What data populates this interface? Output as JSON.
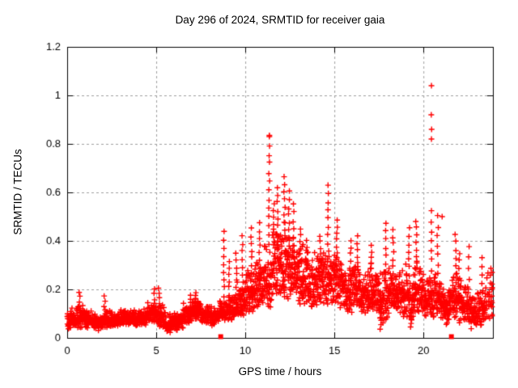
{
  "chart_data": {
    "type": "scatter",
    "title": "Day 296 of 2024, SRMTID for receiver gaia",
    "xlabel": "GPS time / hours",
    "ylabel": "SRMTID / TECUs",
    "xlim": [
      0,
      23.9
    ],
    "ylim": [
      0,
      1.2
    ],
    "xtick_values": [
      0,
      5,
      10,
      15,
      20
    ],
    "xtick_labels": [
      "0",
      "5",
      "10",
      "15",
      "20"
    ],
    "ytick_values": [
      0,
      0.2,
      0.4,
      0.6,
      0.8,
      1.0,
      1.2
    ],
    "ytick_labels": [
      "0",
      "0.2",
      "0.4",
      "0.6",
      "0.8",
      "1",
      "1.2"
    ],
    "grid": {
      "style": "dashed",
      "color": "#9e9e9e",
      "shown": true
    },
    "marker": {
      "shape": "plus",
      "color": "#ff0000",
      "size": 7
    },
    "border_color": "#000000",
    "background_color": "#ffffff",
    "seed": 42,
    "series": [
      {
        "name": "srmtid-plus-markers",
        "representation": "band-envelope",
        "bin_width_hours": 0.5,
        "bins": [
          [
            0.0,
            0.03,
            0.13,
            55
          ],
          [
            0.5,
            0.04,
            0.14,
            55
          ],
          [
            1.0,
            0.04,
            0.12,
            55
          ],
          [
            1.5,
            0.03,
            0.1,
            55
          ],
          [
            2.0,
            0.04,
            0.12,
            55
          ],
          [
            2.5,
            0.04,
            0.11,
            55
          ],
          [
            3.0,
            0.05,
            0.12,
            55
          ],
          [
            3.5,
            0.05,
            0.12,
            55
          ],
          [
            4.0,
            0.05,
            0.13,
            55
          ],
          [
            4.5,
            0.06,
            0.16,
            55
          ],
          [
            5.0,
            0.04,
            0.15,
            55
          ],
          [
            5.5,
            0.02,
            0.1,
            55
          ],
          [
            6.0,
            0.03,
            0.11,
            55
          ],
          [
            6.5,
            0.06,
            0.15,
            55
          ],
          [
            7.0,
            0.07,
            0.17,
            55
          ],
          [
            7.5,
            0.06,
            0.14,
            55
          ],
          [
            8.0,
            0.05,
            0.13,
            55
          ],
          [
            8.5,
            0.06,
            0.16,
            55
          ],
          [
            9.0,
            0.07,
            0.2,
            55
          ],
          [
            9.5,
            0.08,
            0.24,
            55
          ],
          [
            10.0,
            0.1,
            0.3,
            58
          ],
          [
            10.5,
            0.1,
            0.33,
            58
          ],
          [
            11.0,
            0.12,
            0.4,
            58
          ],
          [
            11.5,
            0.15,
            0.48,
            60
          ],
          [
            12.0,
            0.15,
            0.5,
            60
          ],
          [
            12.5,
            0.15,
            0.42,
            60
          ],
          [
            13.0,
            0.13,
            0.4,
            58
          ],
          [
            13.5,
            0.12,
            0.36,
            58
          ],
          [
            14.0,
            0.12,
            0.36,
            58
          ],
          [
            14.5,
            0.13,
            0.38,
            58
          ],
          [
            15.0,
            0.12,
            0.36,
            58
          ],
          [
            15.5,
            0.1,
            0.32,
            58
          ],
          [
            16.0,
            0.12,
            0.34,
            58
          ],
          [
            16.5,
            0.1,
            0.3,
            58
          ],
          [
            17.0,
            0.1,
            0.32,
            58
          ],
          [
            17.5,
            0.05,
            0.3,
            58
          ],
          [
            18.0,
            0.1,
            0.32,
            58
          ],
          [
            18.5,
            0.08,
            0.28,
            58
          ],
          [
            19.0,
            0.05,
            0.32,
            58
          ],
          [
            19.5,
            0.1,
            0.33,
            58
          ],
          [
            20.0,
            0.08,
            0.28,
            55
          ],
          [
            20.5,
            0.08,
            0.28,
            55
          ],
          [
            21.0,
            0.07,
            0.22,
            55
          ],
          [
            21.5,
            0.08,
            0.28,
            55
          ],
          [
            22.0,
            0.06,
            0.25,
            55
          ],
          [
            22.5,
            0.03,
            0.2,
            55
          ],
          [
            23.0,
            0.04,
            0.22,
            50
          ],
          [
            23.5,
            0.05,
            0.3,
            30
          ]
        ],
        "spikes": [
          [
            0.7,
            0.1,
            0.19,
            5
          ],
          [
            2.1,
            0.09,
            0.17,
            5
          ],
          [
            4.9,
            0.12,
            0.2,
            5
          ],
          [
            5.15,
            0.1,
            0.21,
            6
          ],
          [
            6.9,
            0.12,
            0.18,
            4
          ],
          [
            7.2,
            0.13,
            0.19,
            5
          ],
          [
            8.8,
            0.14,
            0.44,
            10
          ],
          [
            9.1,
            0.15,
            0.32,
            7
          ],
          [
            9.5,
            0.18,
            0.35,
            7
          ],
          [
            9.85,
            0.2,
            0.42,
            8
          ],
          [
            10.35,
            0.24,
            0.45,
            8
          ],
          [
            10.8,
            0.26,
            0.47,
            8
          ],
          [
            11.35,
            0.35,
            0.83,
            14
          ],
          [
            11.6,
            0.38,
            0.55,
            7
          ],
          [
            11.8,
            0.4,
            0.62,
            8
          ],
          [
            12.2,
            0.42,
            0.66,
            9
          ],
          [
            12.45,
            0.38,
            0.6,
            8
          ],
          [
            12.7,
            0.35,
            0.55,
            7
          ],
          [
            13.1,
            0.32,
            0.45,
            6
          ],
          [
            13.45,
            0.3,
            0.4,
            5
          ],
          [
            14.2,
            0.3,
            0.42,
            6
          ],
          [
            14.65,
            0.32,
            0.63,
            10
          ],
          [
            15.15,
            0.3,
            0.48,
            8
          ],
          [
            15.9,
            0.26,
            0.4,
            6
          ],
          [
            16.3,
            0.28,
            0.42,
            6
          ],
          [
            17.1,
            0.26,
            0.38,
            6
          ],
          [
            17.6,
            0.04,
            0.12,
            5
          ],
          [
            17.9,
            0.24,
            0.47,
            8
          ],
          [
            18.3,
            0.26,
            0.45,
            7
          ],
          [
            19.2,
            0.26,
            0.45,
            7
          ],
          [
            19.3,
            0.04,
            0.1,
            4
          ],
          [
            19.6,
            0.28,
            0.48,
            8
          ],
          [
            20.45,
            0.2,
            0.52,
            9
          ],
          [
            20.8,
            0.22,
            0.5,
            8
          ],
          [
            21.3,
            0.05,
            0.1,
            4
          ],
          [
            21.8,
            0.2,
            0.43,
            8
          ],
          [
            22.0,
            0.18,
            0.35,
            6
          ],
          [
            22.55,
            0.2,
            0.38,
            5
          ],
          [
            23.3,
            0.15,
            0.33,
            6
          ]
        ],
        "outliers": [
          [
            20.45,
            1.04
          ],
          [
            20.44,
            0.92
          ],
          [
            20.46,
            0.86
          ],
          [
            20.45,
            0.82
          ],
          [
            21.05,
            0.5
          ],
          [
            11.35,
            0.83
          ]
        ],
        "x_max_data": 23.85
      },
      {
        "name": "baseline-square-markers",
        "representation": "points",
        "marker": {
          "shape": "filled-square",
          "color": "#ff0000",
          "size": 6
        },
        "points": [
          [
            8.62,
            0.005
          ],
          [
            21.57,
            0.005
          ]
        ]
      }
    ]
  }
}
